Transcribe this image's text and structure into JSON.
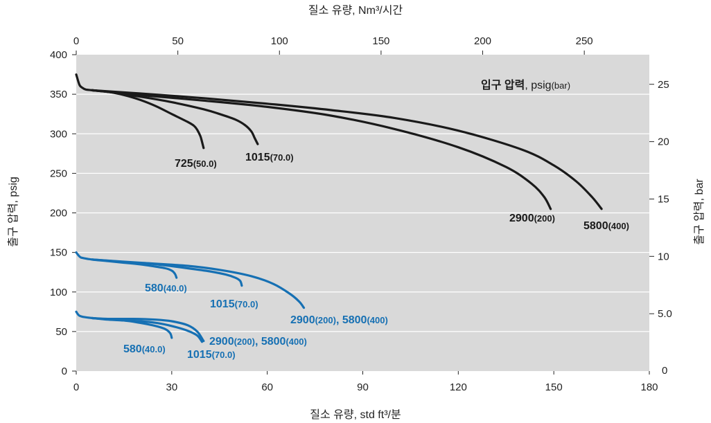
{
  "chart_data": {
    "type": "line",
    "top_axis_title": "질소 유량, Nm³/시간",
    "bottom_axis_title": "질소 유량, std ft³/분",
    "left_axis_title": "출구 압력, psig",
    "right_axis_title": "출구 압력, bar",
    "xlim": [
      0,
      180
    ],
    "ylim": [
      0,
      400
    ],
    "top_xlim": [
      0,
      282
    ],
    "right_ylim": [
      0,
      27.58
    ],
    "x_ticks": [
      "0",
      "30",
      "60",
      "90",
      "120",
      "150",
      "180"
    ],
    "y_ticks": [
      "0",
      "50",
      "100",
      "150",
      "200",
      "250",
      "300",
      "350",
      "400"
    ],
    "top_ticks": [
      "0",
      "50",
      "100",
      "150",
      "200",
      "250"
    ],
    "right_ticks": [
      "0",
      "5.0",
      "10",
      "15",
      "20",
      "25"
    ],
    "legend": {
      "bold": "입구 압력",
      "normal": ", psig",
      "paren": "(bar)"
    },
    "colors": {
      "black": "#1a1a1a",
      "blue": "#1670b3",
      "plot_bg": "#d9d9d9",
      "grid": "#ffffff"
    },
    "series": [
      {
        "group": "black",
        "main": "725",
        "paren": "(50.0)",
        "x": [
          0,
          1,
          2,
          3,
          5,
          10,
          15,
          20,
          25,
          30,
          35,
          37,
          38,
          39,
          39.5,
          40
        ],
        "y": [
          375,
          362,
          358,
          356,
          355,
          353,
          349,
          343,
          335,
          325,
          315,
          310,
          305,
          297,
          290,
          282
        ]
      },
      {
        "group": "black",
        "main": "1015",
        "paren": "(70.0)",
        "x": [
          5,
          10,
          20,
          30,
          40,
          45,
          50,
          53,
          55,
          56,
          57
        ],
        "y": [
          355,
          353,
          347,
          340,
          331,
          325,
          318,
          311,
          303,
          295,
          287
        ]
      },
      {
        "group": "black",
        "main": "2900",
        "paren": "(200)",
        "x": [
          5,
          20,
          40,
          60,
          80,
          100,
          120,
          135,
          143,
          147,
          149
        ],
        "y": [
          355,
          349,
          342,
          334,
          323,
          306,
          283,
          258,
          237,
          220,
          205
        ]
      },
      {
        "group": "black",
        "main": "5800",
        "paren": "(400)",
        "x": [
          5,
          20,
          40,
          60,
          80,
          100,
          120,
          140,
          150,
          157,
          162,
          165
        ],
        "y": [
          355,
          351,
          345,
          338,
          330,
          320,
          304,
          280,
          260,
          240,
          220,
          205
        ]
      },
      {
        "group": "blue",
        "main": "580",
        "paren": "(40.0)",
        "x": [
          0,
          1,
          2,
          5,
          10,
          15,
          20,
          25,
          28,
          30,
          31,
          31.5
        ],
        "y": [
          150,
          145,
          143,
          141,
          139,
          137,
          135,
          132,
          130,
          127,
          123,
          118
        ]
      },
      {
        "group": "blue",
        "main": "1015",
        "paren": "(70.0)",
        "x": [
          5,
          15,
          25,
          35,
          42,
          47,
          50,
          51.5,
          52
        ],
        "y": [
          141,
          138,
          135,
          130,
          126,
          122,
          118,
          114,
          108
        ]
      },
      {
        "group": "blue",
        "main": "2900",
        "paren": "(200)",
        "x": [
          5,
          20,
          35,
          45,
          55,
          62,
          67,
          70,
          71.5
        ],
        "y": [
          141,
          137,
          133,
          128,
          120,
          110,
          98,
          88,
          80
        ]
      },
      {
        "group": "blue",
        "main": "580",
        "paren": "(40.0)",
        "x": [
          0,
          1,
          3,
          8,
          15,
          20,
          25,
          28,
          29.5,
          30
        ],
        "y": [
          75,
          70,
          68,
          66,
          64,
          61,
          57,
          53,
          48,
          42
        ]
      },
      {
        "group": "blue",
        "main": "1015",
        "paren": "(70.0)",
        "x": [
          5,
          10,
          15,
          20,
          25,
          30,
          35,
          38,
          39.5
        ],
        "y": [
          67,
          65,
          64,
          63,
          61,
          57,
          51,
          45,
          37
        ]
      },
      {
        "group": "blue",
        "main": "2900",
        "paren": "(200)",
        "x": [
          5,
          10,
          18,
          25,
          30,
          35,
          38,
          40
        ],
        "y": [
          67,
          66,
          66,
          65,
          63,
          58,
          50,
          38
        ]
      }
    ],
    "labels": [
      {
        "group": "black",
        "main": "725",
        "paren": "(50.0)"
      },
      {
        "group": "black",
        "main": "1015",
        "paren": "(70.0)"
      },
      {
        "group": "black",
        "main": "2900",
        "paren": "(200)"
      },
      {
        "group": "black",
        "main": "5800",
        "paren": "(400)"
      },
      {
        "group": "blue",
        "main": "580",
        "paren": "(40.0)"
      },
      {
        "group": "blue",
        "main": "1015",
        "paren": "(70.0)"
      },
      {
        "group": "blue",
        "main": "2900",
        "paren": "(200)",
        "main2": ", 5800",
        "paren2": "(400)"
      },
      {
        "group": "blue",
        "main": "580",
        "paren": "(40.0)"
      },
      {
        "group": "blue",
        "main": "1015",
        "paren": "(70.0)"
      },
      {
        "group": "blue",
        "main": "2900",
        "paren": "(200)",
        "main2": ", 5800",
        "paren2": "(400)"
      }
    ]
  }
}
